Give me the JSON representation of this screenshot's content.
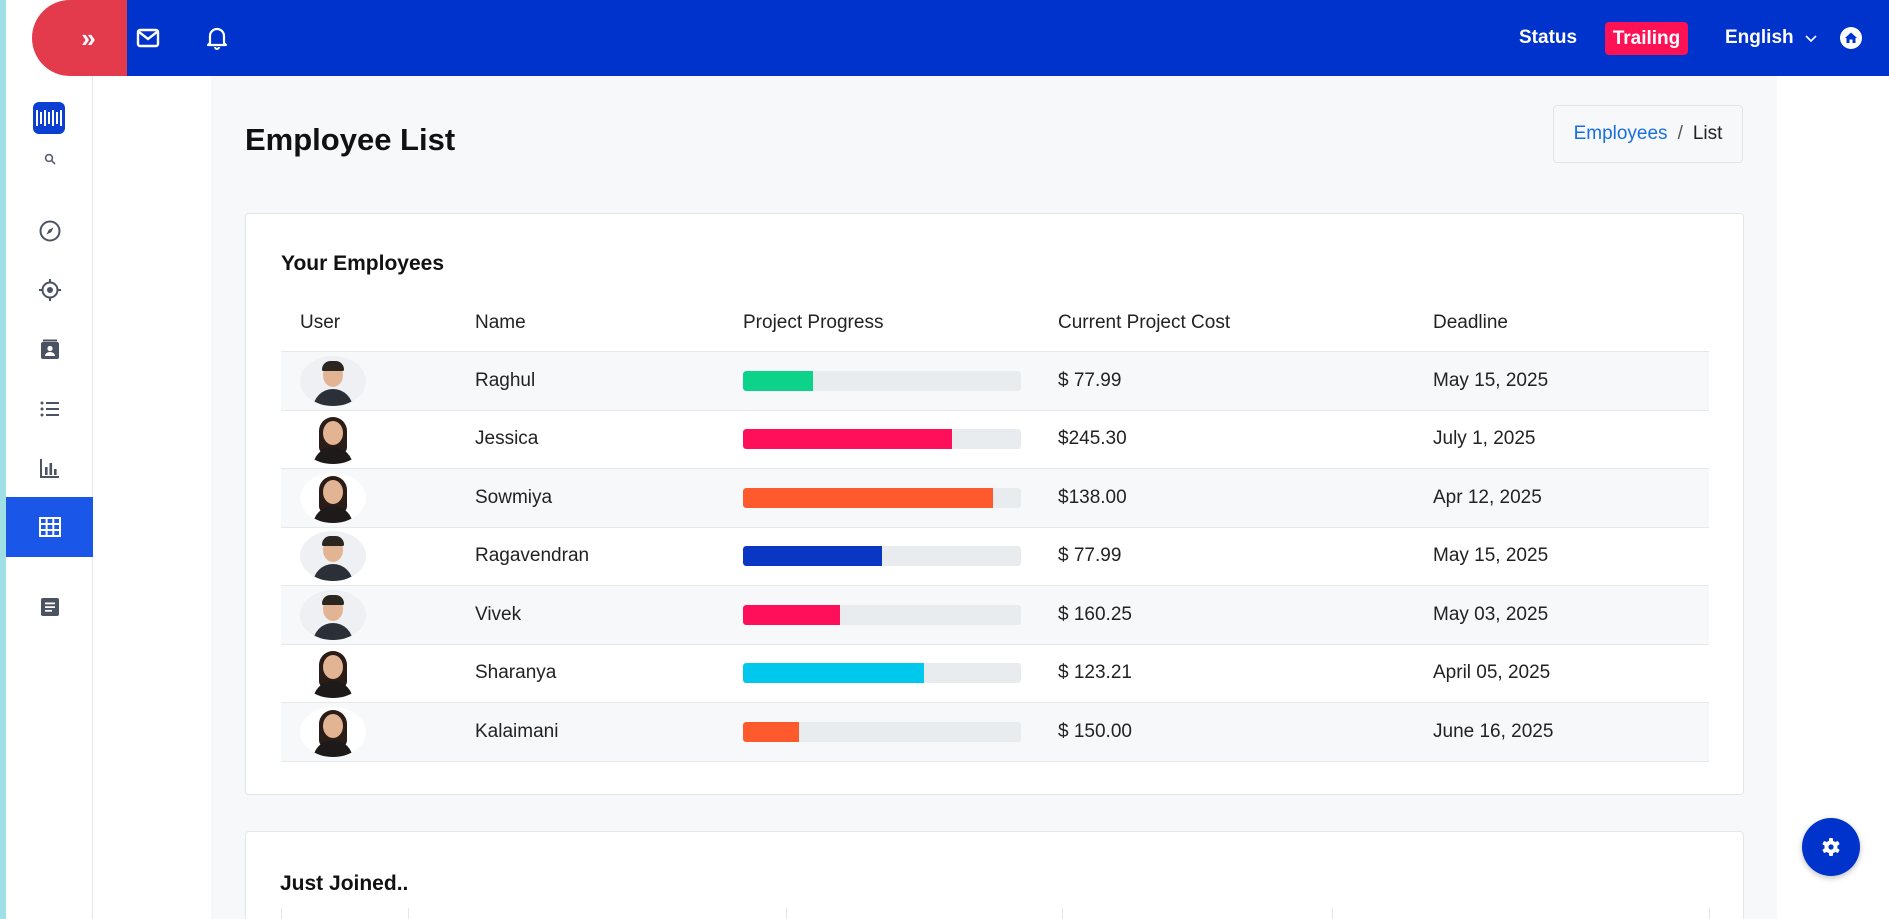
{
  "topbar": {
    "status_label": "Status",
    "trailing_label": "Trailing",
    "language_label": "English",
    "icons": [
      "mail-icon",
      "bell-icon",
      "chevron-down-icon",
      "home-icon"
    ]
  },
  "sidebar": {
    "toggle_icon": "double-chevron-right-icon",
    "items": [
      {
        "icon": "compass-icon"
      },
      {
        "icon": "target-icon"
      },
      {
        "icon": "contact-card-icon"
      },
      {
        "icon": "list-icon"
      },
      {
        "icon": "bar-chart-icon"
      },
      {
        "icon": "table-icon",
        "active": true
      },
      {
        "icon": "document-icon"
      }
    ]
  },
  "page": {
    "title": "Employee List",
    "breadcrumb": {
      "link": "Employees",
      "separator": "/",
      "current": "List"
    }
  },
  "employees_card": {
    "title": "Your Employees",
    "columns": [
      "User",
      "Name",
      "Project Progress",
      "Current Project Cost",
      "Deadline"
    ],
    "rows": [
      {
        "name": "Raghul",
        "progress": 0.25,
        "color": "#0cd389",
        "cost": "$ 77.99",
        "deadline": "May 15, 2025",
        "avatar": "male-glasses"
      },
      {
        "name": "Jessica",
        "progress": 0.75,
        "color": "#ff0f5a",
        "cost": "$245.30",
        "deadline": "July 1, 2025",
        "avatar": "female"
      },
      {
        "name": "Sowmiya",
        "progress": 0.9,
        "color": "#ff5a2e",
        "cost": "$138.00",
        "deadline": "Apr 12, 2025",
        "avatar": "female"
      },
      {
        "name": "Ragavendran",
        "progress": 0.5,
        "color": "#0a36c4",
        "cost": "$ 77.99",
        "deadline": "May 15, 2025",
        "avatar": "male"
      },
      {
        "name": "Vivek",
        "progress": 0.35,
        "color": "#ff0f5a",
        "cost": "$ 160.25",
        "deadline": "May 03, 2025",
        "avatar": "male"
      },
      {
        "name": "Sharanya",
        "progress": 0.65,
        "color": "#00c8ec",
        "cost": "$ 123.21",
        "deadline": "April 05, 2025",
        "avatar": "female"
      },
      {
        "name": "Kalaimani",
        "progress": 0.2,
        "color": "#ff5a2e",
        "cost": "$ 150.00",
        "deadline": "June 16, 2025",
        "avatar": "female"
      }
    ]
  },
  "joined_card": {
    "title": "Just Joined.."
  },
  "fab": {
    "icon": "gear-icon"
  }
}
